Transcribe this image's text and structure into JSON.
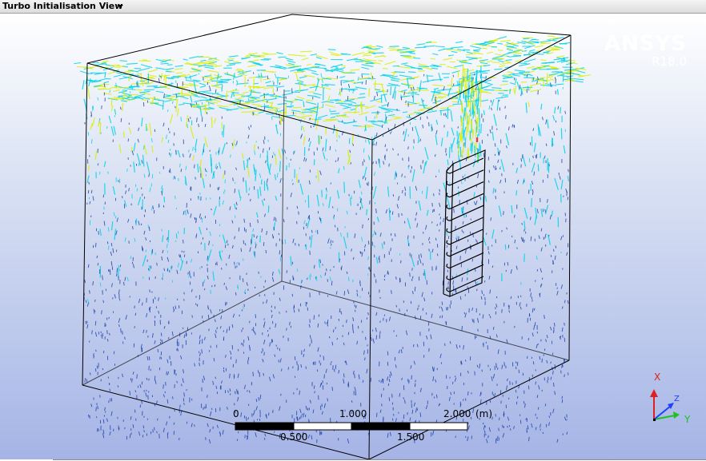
{
  "window": {
    "title": "Turbo Initialisation View",
    "dropdown_icon": "caret-down-icon"
  },
  "brand": {
    "name": "ANSYS",
    "version": "R18.0"
  },
  "scale_bar": {
    "top_labels": [
      "0",
      "1.000",
      "2.000"
    ],
    "bottom_labels": [
      "0.500",
      "1.500"
    ],
    "unit": "(m)"
  },
  "triad": {
    "x_label": "X",
    "y_label": "Y",
    "z_label": "Z",
    "colors": {
      "x": "#e02020",
      "y": "#20c020",
      "z": "#2040ff"
    }
  },
  "colors": {
    "titlebar_text": "#000000",
    "vector_low": "#1a3fa8",
    "vector_mid": "#00d2e6",
    "vector_high": "#d8f000",
    "vector_peak": "#ff2020"
  }
}
